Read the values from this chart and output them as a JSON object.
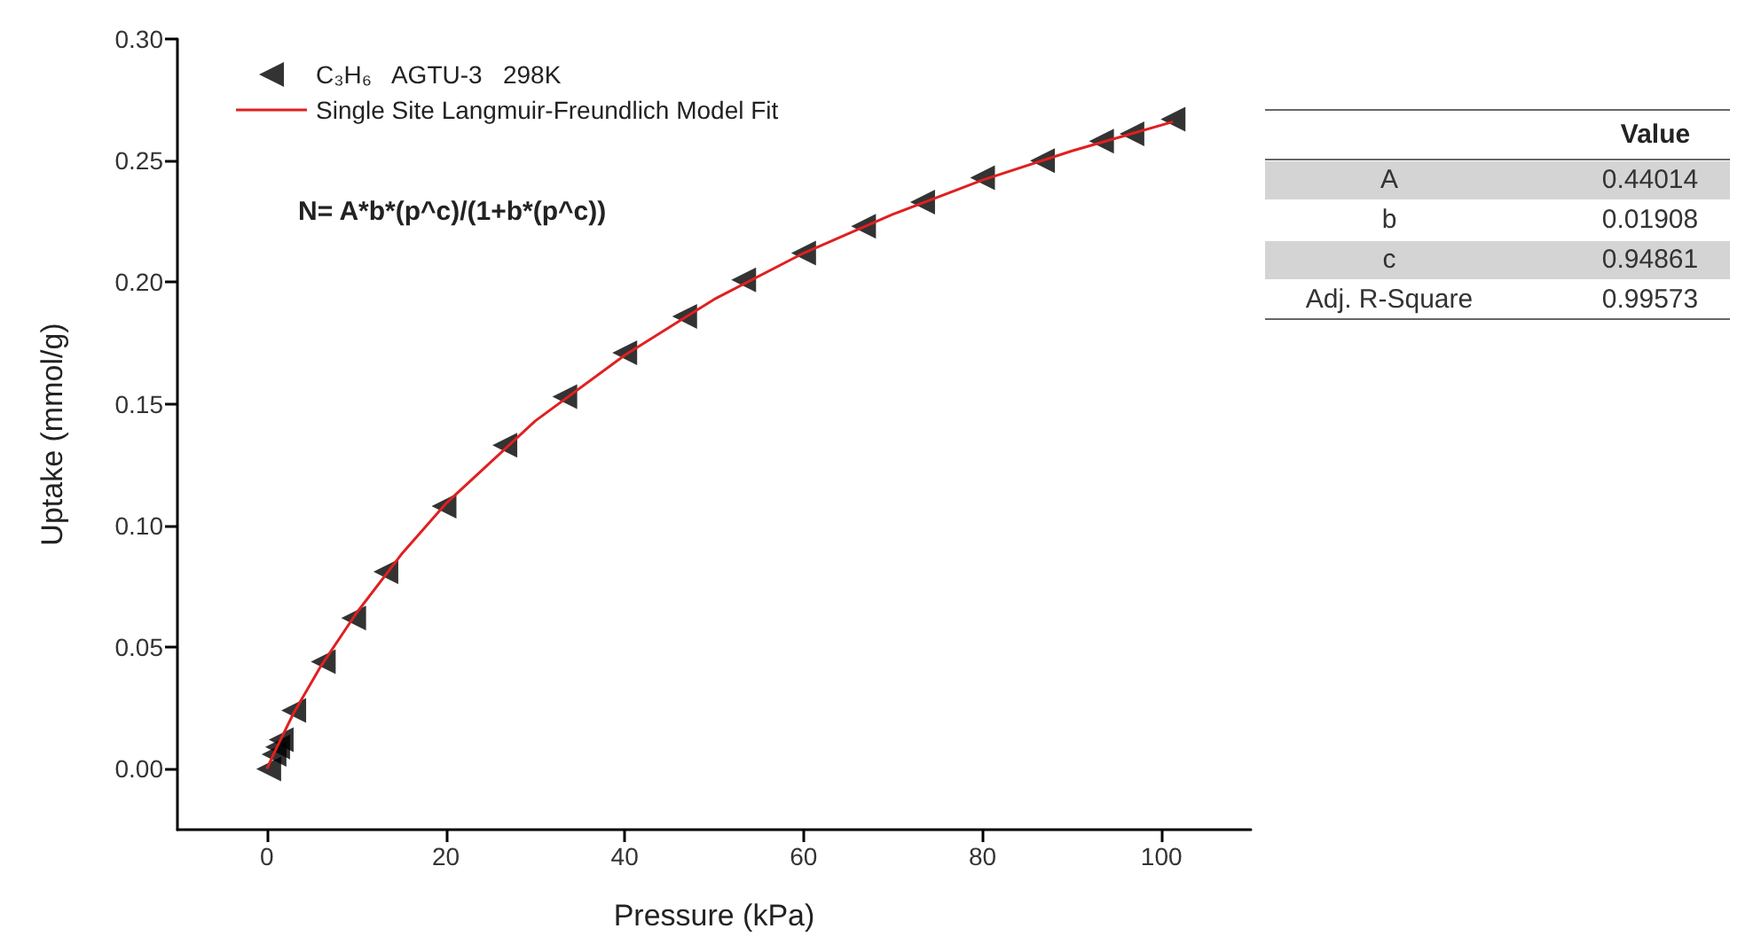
{
  "chart_data": {
    "type": "scatter",
    "xlabel": "Pressure (kPa)",
    "ylabel": "Uptake (mmol/g)",
    "xlim": [
      -10,
      110
    ],
    "xticks": [
      0,
      20,
      40,
      60,
      80,
      100
    ],
    "ylim": [
      -0.025,
      0.3
    ],
    "yticks": [
      {
        "value": 0,
        "label": "0.00"
      },
      {
        "value": 0.05,
        "label": "0.05"
      },
      {
        "value": 0.1,
        "label": "0.10"
      },
      {
        "value": 0.15,
        "label": "0.15"
      },
      {
        "value": 0.2,
        "label": "0.20"
      },
      {
        "value": 0.25,
        "label": "0.25"
      },
      {
        "value": 0.3,
        "label": "0.30"
      }
    ],
    "legend": "top left",
    "grid": false,
    "marker": "triangle",
    "series": [
      {
        "name": "C₃H₆   AGTU-3   298K",
        "color": "#000000",
        "x": [
          0.2,
          0.5,
          0.8,
          1.2,
          1.6,
          3,
          6.3,
          9.7,
          13.3,
          19.8,
          26.6,
          33.3,
          40,
          46.7,
          53.3,
          60,
          66.7,
          73.3,
          80,
          86.7,
          93.3,
          96.7,
          101.3
        ],
        "values": [
          0,
          null,
          0.006,
          0.009,
          0.012,
          0.024,
          0.044,
          0.062,
          0.081,
          0.108,
          0.133,
          0.153,
          0.171,
          0.186,
          0.201,
          0.212,
          0.223,
          0.233,
          0.243,
          0.25,
          0.258,
          0.261,
          0.267
        ]
      },
      {
        "name": "Single Site Langmuir-Freundlich Model Fit",
        "type": "line",
        "marker": "none",
        "line_style": "solid",
        "color": "#e02020",
        "x": [
          0,
          1,
          3,
          6,
          10,
          15,
          20,
          30,
          40,
          50,
          60,
          70,
          80,
          90,
          101.3
        ],
        "values": [
          0,
          0.008,
          0.023,
          0.042,
          0.064,
          0.088,
          0.109,
          0.143,
          0.17,
          0.193,
          0.212,
          0.228,
          0.242,
          0.254,
          0.266
        ]
      }
    ],
    "annotations": [
      "N= A*b*(p^c)/(1+b*(p^c))",
      "Value",
      "A",
      "0.44014",
      "b",
      "0.01908",
      "c",
      "0.94861",
      "Adj. R-Square",
      "0.99573"
    ]
  }
}
